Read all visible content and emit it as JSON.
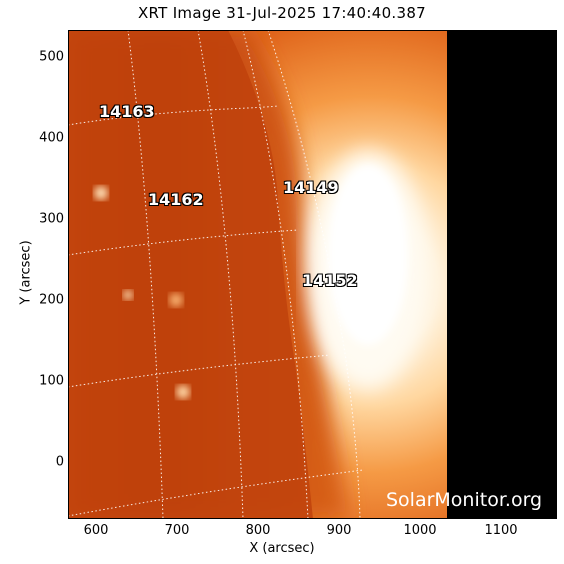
{
  "title": "XRT Image 31-Jul-2025 17:40:40.387",
  "xlabel": "X (arcsec)",
  "ylabel": "Y (arcsec)",
  "x_ticks": [
    "600",
    "700",
    "800",
    "900",
    "1000",
    "1100"
  ],
  "y_ticks": [
    "500",
    "400",
    "300",
    "200",
    "100",
    "0"
  ],
  "active_regions": [
    "14163",
    "14162",
    "14149",
    "14152"
  ],
  "watermark": "SolarMonitor.org",
  "colors": {
    "disk_dark": "#b83c0a",
    "disk_mid": "#e0661c",
    "bright": "#fff7e8",
    "space": "#000000"
  }
}
